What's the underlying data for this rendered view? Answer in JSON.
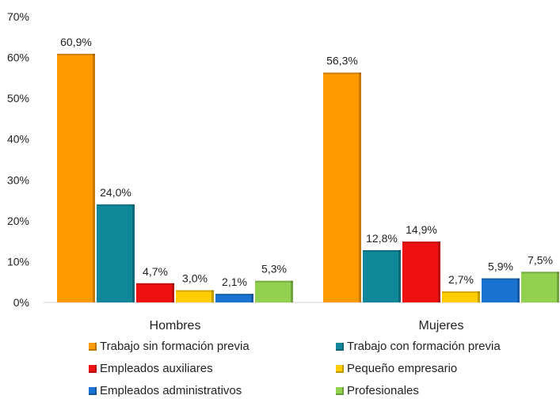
{
  "chart_data": {
    "type": "bar",
    "categories": [
      "Hombres",
      "Mujeres"
    ],
    "series": [
      {
        "name": "Trabajo sin formación previa",
        "color": "#FF9A00",
        "values": [
          60.9,
          56.3
        ],
        "labels": [
          "60,9%",
          "56,3%"
        ]
      },
      {
        "name": "Trabajo con formación previa",
        "color": "#10889A",
        "values": [
          24.0,
          12.8
        ],
        "labels": [
          "24,0%",
          "12,8%"
        ]
      },
      {
        "name": "Empleados auxiliares",
        "color": "#EE1111",
        "values": [
          4.7,
          14.9
        ],
        "labels": [
          "4,7%",
          "14,9%"
        ]
      },
      {
        "name": "Pequeño empresario",
        "color": "#FFCC00",
        "values": [
          3.0,
          2.7
        ],
        "labels": [
          "3,0%",
          "2,7%"
        ]
      },
      {
        "name": "Empleados administrativos",
        "color": "#1A73D0",
        "values": [
          2.1,
          5.9
        ],
        "labels": [
          "2,1%",
          "5,9%"
        ]
      },
      {
        "name": "Profesionales",
        "color": "#92D050",
        "values": [
          5.3,
          7.5
        ],
        "labels": [
          "5,3%",
          "7,5%"
        ]
      }
    ],
    "y_ticks": [
      "0%",
      "10%",
      "20%",
      "30%",
      "40%",
      "50%",
      "60%",
      "70%"
    ],
    "ylim": [
      0,
      70
    ],
    "grid": false,
    "legend_position": "bottom"
  }
}
